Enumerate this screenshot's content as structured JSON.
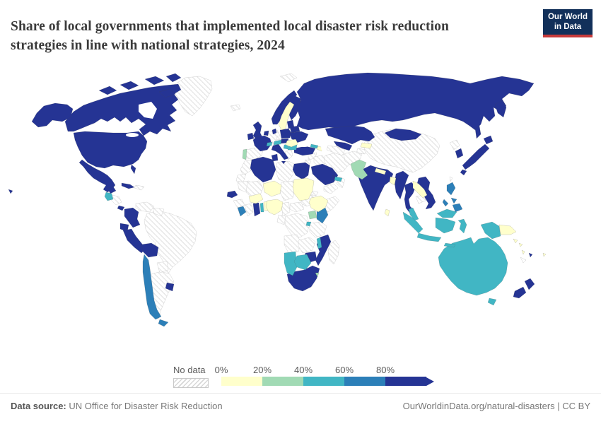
{
  "header": {
    "title": "Share of local governments that implemented local disaster risk reduction strategies in line with national strategies, 2024",
    "logo_line1": "Our World",
    "logo_line2": "in Data"
  },
  "legend": {
    "no_data_label": "No data",
    "ticks": [
      "0%",
      "20%",
      "40%",
      "60%",
      "80%"
    ]
  },
  "footer": {
    "source_label": "Data source:",
    "source_value": " UN Office for Disaster Risk Reduction",
    "rights": "OurWorldinData.org/natural-disasters | CC BY"
  },
  "chart_data": {
    "type": "choropleth_map",
    "title": "Share of local governments that implemented local disaster risk reduction strategies in line with national strategies",
    "year": 2024,
    "unit": "% of local governments",
    "legend_position": "bottom",
    "bins": [
      {
        "range": "0-20%",
        "color": "#ffffcc"
      },
      {
        "range": "20-40%",
        "color": "#a1dab4"
      },
      {
        "range": "40-60%",
        "color": "#41b6c4"
      },
      {
        "range": "60-80%",
        "color": "#2c7fb8"
      },
      {
        "range": "80-100%",
        "color": "#253494"
      },
      {
        "range": "No data",
        "color": "hatch"
      }
    ],
    "entities": {
      "Canada": "80-100%",
      "United States": "80-100%",
      "Mexico": "80-100%",
      "Cuba": "80-100%",
      "Panama": "80-100%",
      "Colombia": "80-100%",
      "Ecuador": "80-100%",
      "Peru": "80-100%",
      "Bolivia": "80-100%",
      "Uruguay": "80-100%",
      "United Kingdom": "80-100%",
      "Ireland": "80-100%",
      "Norway": "80-100%",
      "Finland": "80-100%",
      "Denmark": "80-100%",
      "Netherlands": "80-100%",
      "France": "80-100%",
      "Italy": "80-100%",
      "Poland": "80-100%",
      "Baltic states": "80-100%",
      "Belarus": "80-100%",
      "Ukraine": "80-100%",
      "Hungary": "80-100%",
      "Turkey": "80-100%",
      "Russia": "80-100%",
      "Kazakhstan": "80-100%",
      "Uzbekistan": "80-100%",
      "Mongolia": "80-100%",
      "Japan": "80-100%",
      "South Korea": "80-100%",
      "India": "80-100%",
      "Myanmar": "80-100%",
      "Thailand": "80-100%",
      "Vietnam": "80-100%",
      "Brunei": "80-100%",
      "Saudi Arabia": "80-100%",
      "Qatar": "80-100%",
      "Egypt": "80-100%",
      "Algeria": "80-100%",
      "Tunisia": "80-100%",
      "Senegal": "80-100%",
      "Ghana": "80-100%",
      "Mozambique": "80-100%",
      "Zimbabwe": "80-100%",
      "South Africa": "80-100%",
      "New Zealand": "80-100%",
      "Fiji": "80-100%",
      "Chile": "60-80%",
      "Kenya": "60-80%",
      "Philippines": "60-80%",
      "Liberia": "60-80%",
      "Guatemala": "40-60%",
      "Switzerland": "40-60%",
      "Austria": "40-60%",
      "Serbia": "40-60%",
      "Bulgaria": "40-60%",
      "Georgia": "40-60%",
      "United Arab Emirates": "40-60%",
      "Togo": "40-60%",
      "Rwanda": "40-60%",
      "Malawi": "40-60%",
      "Namibia": "40-60%",
      "Botswana": "40-60%",
      "Australia": "40-60%",
      "Malaysia": "40-60%",
      "Indonesia": "40-60%",
      "Portugal": "20-40%",
      "Pakistan": "20-40%",
      "Uganda": "20-40%",
      "Eswatini": "20-40%",
      "Sweden": "0-20%",
      "Romania": "0-20%",
      "Azerbaijan": "0-20%",
      "Kyrgyzstan": "0-20%",
      "Niger": "0-20%",
      "Sudan": "0-20%",
      "Burkina Faso": "0-20%",
      "Benin": "0-20%",
      "Nigeria": "0-20%",
      "Ethiopia": "0-20%",
      "Nepal": "0-20%",
      "Bangladesh": "0-20%",
      "Sri Lanka": "0-20%",
      "Laos": "0-20%",
      "Papua New Guinea": "0-20%",
      "Solomon Islands": "0-20%",
      "Vanuatu": "0-20%",
      "Tonga": "0-20%",
      "Greenland": "No data",
      "Iceland": "No data",
      "Svalbard": "No data",
      "Spain": "No data",
      "Germany": "No data",
      "Czechia": "No data",
      "Greece": "No data",
      "Morocco": "No data",
      "Western Sahara": "No data",
      "Libya": "No data",
      "Mauritania": "No data",
      "Mali": "No data",
      "Chad": "No data",
      "Cameroon": "No data",
      "Central African Republic": "No data",
      "South Sudan": "No data",
      "Eritrea": "No data",
      "Somalia": "No data",
      "Democratic Republic of Congo": "No data",
      "Congo": "No data",
      "Angola": "No data",
      "Zambia": "No data",
      "Tanzania": "No data",
      "Madagascar": "No data",
      "Guinea": "No data",
      "Cote d'Ivoire": "No data",
      "Lesotho": "No data",
      "Syria": "No data",
      "Jordan": "No data",
      "Iraq": "No data",
      "Iran": "No data",
      "Yemen": "No data",
      "Oman": "No data",
      "Afghanistan": "No data",
      "Turkmenistan": "No data",
      "Tajikistan": "No data",
      "China": "No data",
      "Taiwan": "No data",
      "North Korea": "No data",
      "Cambodia": "No data",
      "Venezuela": "No data",
      "Guyana": "No data",
      "Brazil": "No data",
      "Paraguay": "No data",
      "Argentina": "No data",
      "Haiti": "No data",
      "Honduras": "No data",
      "New Caledonia": "No data"
    }
  }
}
